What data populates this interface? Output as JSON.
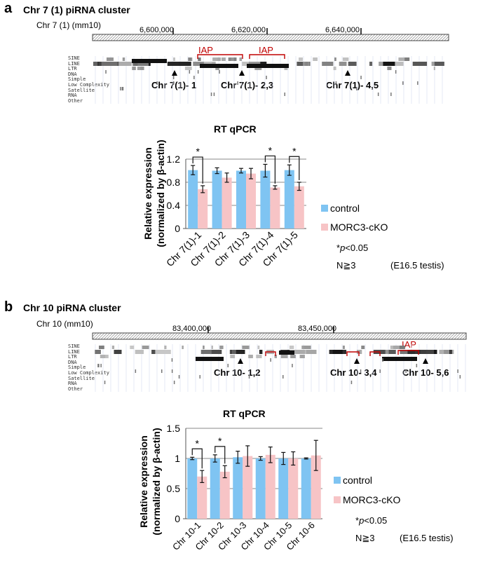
{
  "panels": {
    "a": {
      "letter": "a",
      "title": "Chr 7 (1) piRNA cluster",
      "browser_label": "Chr 7 (1) (mm10)",
      "coords": [
        "6,600,000",
        "6,620,000",
        "6,640,000"
      ],
      "repeat_tracks": [
        "SINE",
        "LINE",
        "LTR",
        "DNA",
        "Simple",
        "Low Complexity",
        "Satellite",
        "RNA",
        "Other"
      ],
      "iap_label": "IAP",
      "sites": [
        "Chr 7(1)- 1",
        "Chr 7(1)- 2,3",
        "Chr 7(1)- 4,5"
      ],
      "legend": {
        "control": "control",
        "ko": "MORC3-cKO"
      },
      "note_p_prefix": "*",
      "note_p_italic": "p",
      "note_p_suffix": "<0.05",
      "note_n": "N≧3",
      "note_tissue": "(E16.5 testis)"
    },
    "b": {
      "letter": "b",
      "title": "Chr 10 piRNA cluster",
      "browser_label": "Chr 10 (mm10)",
      "coords": [
        "83,400,000",
        "83,450,000"
      ],
      "repeat_tracks": [
        "SINE",
        "LINE",
        "LTR",
        "DNA",
        "Simple",
        "Low Complexity",
        "Satellite",
        "RNA",
        "Other"
      ],
      "iap_label": "IAP",
      "sites": [
        "Chr 10- 1,2",
        "Chr 10- 3,4",
        "Chr 10- 5,6"
      ],
      "legend": {
        "control": "control",
        "ko": "MORC3-cKO"
      },
      "note_p_prefix": "*",
      "note_p_italic": "p",
      "note_p_suffix": "<0.05",
      "note_n": "N≧3",
      "note_tissue": "(E16.5 testis)"
    }
  },
  "chart_data": [
    {
      "type": "bar",
      "title": "RT qPCR",
      "ylabel_line1": "Relative expression",
      "ylabel_line2": "(normalized by β-actin)",
      "categories": [
        "Chr 7(1)-1",
        "Chr 7(1)-2",
        "Chr 7(1)-3",
        "Chr 7(1)-4",
        "Chr 7(1)-5"
      ],
      "yticks": [
        "0",
        "0.4",
        "0.8",
        "1.2"
      ],
      "ylim": [
        0,
        1.2
      ],
      "grid": true,
      "legend_position": "right",
      "series": [
        {
          "name": "control",
          "color": "#7fc4f2",
          "values": [
            1.01,
            1.0,
            1.0,
            1.0,
            1.01
          ],
          "errors": [
            0.08,
            0.05,
            0.04,
            0.11,
            0.09
          ]
        },
        {
          "name": "MORC3-cKO",
          "color": "#f7c4c6",
          "values": [
            0.68,
            0.88,
            0.95,
            0.71,
            0.73
          ],
          "errors": [
            0.06,
            0.08,
            0.09,
            0.03,
            0.07
          ]
        }
      ],
      "significance": [
        0,
        3,
        4
      ],
      "sig_mark": "*"
    },
    {
      "type": "bar",
      "title": "RT qPCR",
      "ylabel_line1": "Relative expression",
      "ylabel_line2": "(normalized by β-actin)",
      "categories": [
        "Chr 10-1",
        "Chr 10-2",
        "Chr 10-3",
        "Chr 10-4",
        "Chr 10-5",
        "Chr 10-6"
      ],
      "yticks": [
        "0",
        "0.5",
        "1",
        "1.5"
      ],
      "ylim": [
        0,
        1.5
      ],
      "grid": true,
      "legend_position": "right",
      "series": [
        {
          "name": "control",
          "color": "#7fc4f2",
          "values": [
            1.0,
            1.0,
            1.02,
            1.0,
            1.0,
            1.0
          ],
          "errors": [
            0.02,
            0.06,
            0.1,
            0.03,
            0.1,
            0.01
          ]
        },
        {
          "name": "MORC3-cKO",
          "color": "#f7c4c6",
          "values": [
            0.7,
            0.78,
            1.04,
            1.06,
            1.0,
            1.05
          ],
          "errors": [
            0.1,
            0.1,
            0.17,
            0.13,
            0.11,
            0.25
          ]
        }
      ],
      "significance": [
        0,
        1
      ],
      "sig_mark": "*"
    }
  ]
}
